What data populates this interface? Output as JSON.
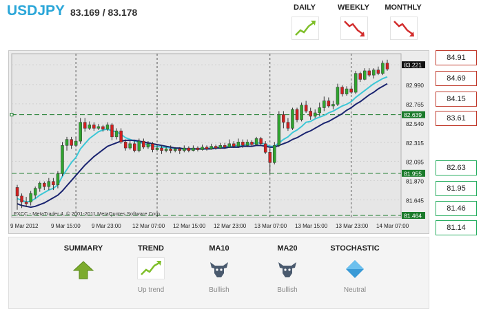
{
  "header": {
    "symbol": "USDJPY",
    "quote": "83.169 / 83.178"
  },
  "timeframes": [
    {
      "label": "DAILY",
      "icon": "uptrend-chart-icon"
    },
    {
      "label": "WEEKLY",
      "icon": "downtrend-chart-icon"
    },
    {
      "label": "MONTHLY",
      "icon": "downtrend-chart-icon"
    }
  ],
  "chart_data": {
    "type": "line",
    "title": "",
    "credit": "FXCC - MetaTrader 4, © 2001-2011 MetaQuotes Software Corp.",
    "y_ticks": [
      "83.221",
      "82.990",
      "82.765",
      "82.540",
      "82.315",
      "82.095",
      "81.870",
      "81.645"
    ],
    "marked_levels": [
      {
        "label": "82.639",
        "value": 82.639
      },
      {
        "label": "81.955",
        "value": 81.955
      },
      {
        "label": "81.464",
        "value": 81.464
      }
    ],
    "current_price_label": "83.221",
    "x_ticks": [
      "9 Mar 2012",
      "9 Mar 15:00",
      "9 Mar 23:00",
      "12 Mar 07:00",
      "12 Mar 15:00",
      "12 Mar 23:00",
      "13 Mar 07:00",
      "13 Mar 15:00",
      "13 Mar 23:00",
      "14 Mar 07:00"
    ],
    "ylim": [
      81.44,
      83.35
    ],
    "candles": [
      [
        81.79,
        81.69,
        81.82,
        81.53
      ],
      [
        81.69,
        81.62,
        81.72,
        81.55
      ],
      [
        81.62,
        81.6,
        81.68,
        81.56
      ],
      [
        81.62,
        81.72,
        81.75,
        81.58
      ],
      [
        81.7,
        81.78,
        81.8,
        81.66
      ],
      [
        81.78,
        81.84,
        81.86,
        81.74
      ],
      [
        81.84,
        81.8,
        81.86,
        81.76
      ],
      [
        81.8,
        81.86,
        81.9,
        81.76
      ],
      [
        81.86,
        81.82,
        81.9,
        81.76
      ],
      [
        81.82,
        81.95,
        81.98,
        81.78
      ],
      [
        81.95,
        82.28,
        82.32,
        81.92
      ],
      [
        82.28,
        82.35,
        82.38,
        82.22
      ],
      [
        82.35,
        82.28,
        82.38,
        82.24
      ],
      [
        82.28,
        82.33,
        82.38,
        82.26
      ],
      [
        82.33,
        82.55,
        82.6,
        82.3
      ],
      [
        82.55,
        82.48,
        82.6,
        82.44
      ],
      [
        82.48,
        82.52,
        82.56,
        82.46
      ],
      [
        82.52,
        82.48,
        82.55,
        82.45
      ],
      [
        82.48,
        82.5,
        82.53,
        82.46
      ],
      [
        82.5,
        82.47,
        82.52,
        82.44
      ],
      [
        82.47,
        82.52,
        82.55,
        82.45
      ],
      [
        82.52,
        82.38,
        82.54,
        82.34
      ],
      [
        82.38,
        82.45,
        82.48,
        82.35
      ],
      [
        82.45,
        82.32,
        82.48,
        82.3
      ],
      [
        82.32,
        82.25,
        82.35,
        82.22
      ],
      [
        82.25,
        82.3,
        82.33,
        82.23
      ],
      [
        82.3,
        82.22,
        82.33,
        82.2
      ],
      [
        82.22,
        82.33,
        82.36,
        82.2
      ],
      [
        82.33,
        82.26,
        82.36,
        82.24
      ],
      [
        82.26,
        82.3,
        82.33,
        82.24
      ],
      [
        82.3,
        82.23,
        82.32,
        82.2
      ],
      [
        82.23,
        82.25,
        82.29,
        82.21
      ],
      [
        82.25,
        82.22,
        82.28,
        82.18
      ],
      [
        82.22,
        82.24,
        82.27,
        82.2
      ],
      [
        82.24,
        82.22,
        82.28,
        82.19
      ],
      [
        82.22,
        82.24,
        82.26,
        82.2
      ],
      [
        82.24,
        82.22,
        82.26,
        82.18
      ],
      [
        82.22,
        82.25,
        82.28,
        82.2
      ],
      [
        82.25,
        82.22,
        82.27,
        82.2
      ],
      [
        82.22,
        82.25,
        82.28,
        82.21
      ],
      [
        82.25,
        82.23,
        82.27,
        82.21
      ],
      [
        82.23,
        82.26,
        82.29,
        82.22
      ],
      [
        82.26,
        82.24,
        82.28,
        82.22
      ],
      [
        82.24,
        82.27,
        82.3,
        82.23
      ],
      [
        82.27,
        82.25,
        82.29,
        82.23
      ],
      [
        82.25,
        82.28,
        82.31,
        82.24
      ],
      [
        82.28,
        82.26,
        82.31,
        82.24
      ],
      [
        82.26,
        82.3,
        82.35,
        82.25
      ],
      [
        82.3,
        82.27,
        82.33,
        82.25
      ],
      [
        82.27,
        82.32,
        82.36,
        82.25
      ],
      [
        82.32,
        82.28,
        82.35,
        82.25
      ],
      [
        82.28,
        82.32,
        82.35,
        82.26
      ],
      [
        82.32,
        82.29,
        82.34,
        82.27
      ],
      [
        82.29,
        82.36,
        82.38,
        82.28
      ],
      [
        82.36,
        82.3,
        82.38,
        82.28
      ],
      [
        82.3,
        82.2,
        82.33,
        82.18
      ],
      [
        82.2,
        82.08,
        82.25,
        81.95
      ],
      [
        82.08,
        82.28,
        82.32,
        82.06
      ],
      [
        82.28,
        82.64,
        82.68,
        82.26
      ],
      [
        82.64,
        82.55,
        82.68,
        82.48
      ],
      [
        82.55,
        82.48,
        82.6,
        82.45
      ],
      [
        82.48,
        82.7,
        82.72,
        82.46
      ],
      [
        82.7,
        82.58,
        82.72,
        82.55
      ],
      [
        82.58,
        82.75,
        82.78,
        82.56
      ],
      [
        82.75,
        82.68,
        82.8,
        82.66
      ],
      [
        82.68,
        82.62,
        82.72,
        82.58
      ],
      [
        82.62,
        82.66,
        82.7,
        82.6
      ],
      [
        82.66,
        82.72,
        82.78,
        82.62
      ],
      [
        82.72,
        82.8,
        82.85,
        82.68
      ],
      [
        82.8,
        82.74,
        82.84,
        82.72
      ],
      [
        82.74,
        82.76,
        82.8,
        82.7
      ],
      [
        82.76,
        82.96,
        83.0,
        82.74
      ],
      [
        82.96,
        82.88,
        82.98,
        82.85
      ],
      [
        82.88,
        82.94,
        82.97,
        82.86
      ],
      [
        82.94,
        82.9,
        82.98,
        82.88
      ],
      [
        82.9,
        83.12,
        83.15,
        82.88
      ],
      [
        83.12,
        83.05,
        83.14,
        83.02
      ],
      [
        83.05,
        83.15,
        83.18,
        83.04
      ],
      [
        83.15,
        83.1,
        83.18,
        83.08
      ],
      [
        83.1,
        83.16,
        83.18,
        83.06
      ],
      [
        83.16,
        83.12,
        83.2,
        83.1
      ],
      [
        83.12,
        83.24,
        83.27,
        83.1
      ],
      [
        83.24,
        83.17,
        83.28,
        83.15
      ]
    ],
    "series": [
      {
        "name": "MA10",
        "color": "#3cc7d6",
        "values": [
          81.66,
          81.64,
          81.62,
          81.63,
          81.66,
          81.7,
          81.73,
          81.76,
          81.78,
          81.82,
          81.92,
          82.0,
          82.08,
          82.14,
          82.24,
          82.3,
          82.36,
          82.4,
          82.44,
          82.46,
          82.47,
          82.45,
          82.44,
          82.41,
          82.37,
          82.35,
          82.33,
          82.32,
          82.3,
          82.29,
          82.27,
          82.27,
          82.26,
          82.26,
          82.25,
          82.25,
          82.24,
          82.24,
          82.24,
          82.24,
          82.24,
          82.24,
          82.24,
          82.25,
          82.25,
          82.26,
          82.26,
          82.27,
          82.27,
          82.28,
          82.28,
          82.29,
          82.3,
          82.31,
          82.31,
          82.29,
          82.27,
          82.27,
          82.31,
          82.35,
          82.38,
          82.43,
          82.46,
          82.5,
          82.55,
          82.56,
          82.59,
          82.61,
          82.63,
          82.66,
          82.68,
          82.71,
          82.74,
          82.76,
          82.79,
          82.84,
          82.88,
          82.92,
          82.96,
          83.0,
          83.03,
          83.06,
          83.08
        ]
      },
      {
        "name": "MA20",
        "color": "#1a2470",
        "values": [
          81.6,
          81.58,
          81.57,
          81.56,
          81.57,
          81.59,
          81.61,
          81.64,
          81.67,
          81.7,
          81.75,
          81.81,
          81.87,
          81.93,
          81.99,
          82.05,
          82.1,
          82.15,
          82.19,
          82.23,
          82.27,
          82.29,
          82.31,
          82.33,
          82.34,
          82.34,
          82.34,
          82.33,
          82.32,
          82.31,
          82.3,
          82.29,
          82.28,
          82.27,
          82.26,
          82.25,
          82.25,
          82.24,
          82.24,
          82.24,
          82.24,
          82.24,
          82.24,
          82.24,
          82.25,
          82.25,
          82.25,
          82.26,
          82.26,
          82.26,
          82.27,
          82.27,
          82.27,
          82.28,
          82.28,
          82.27,
          82.26,
          82.26,
          82.28,
          82.3,
          82.32,
          82.35,
          82.37,
          82.4,
          82.43,
          82.45,
          82.48,
          82.51,
          82.54,
          82.56,
          82.59,
          82.62,
          82.65,
          82.69,
          82.72,
          82.76,
          82.79,
          82.83,
          82.87,
          82.9,
          82.94,
          82.97,
          83.0
        ]
      }
    ]
  },
  "resistance_levels": [
    "84.91",
    "84.69",
    "84.15",
    "83.61"
  ],
  "support_levels": [
    "82.63",
    "81.95",
    "81.46",
    "81.14"
  ],
  "summary": [
    {
      "title": "SUMMARY",
      "value": "",
      "icon": "up-arrow-icon"
    },
    {
      "title": "TREND",
      "value": "Up trend",
      "icon": "uptrend-chart-icon"
    },
    {
      "title": "MA10",
      "value": "Bullish",
      "icon": "bull-icon"
    },
    {
      "title": "MA20",
      "value": "Bullish",
      "icon": "bull-icon"
    },
    {
      "title": "STOCHASTIC",
      "value": "Neutral",
      "icon": "neutral-diamond-icon"
    }
  ]
}
